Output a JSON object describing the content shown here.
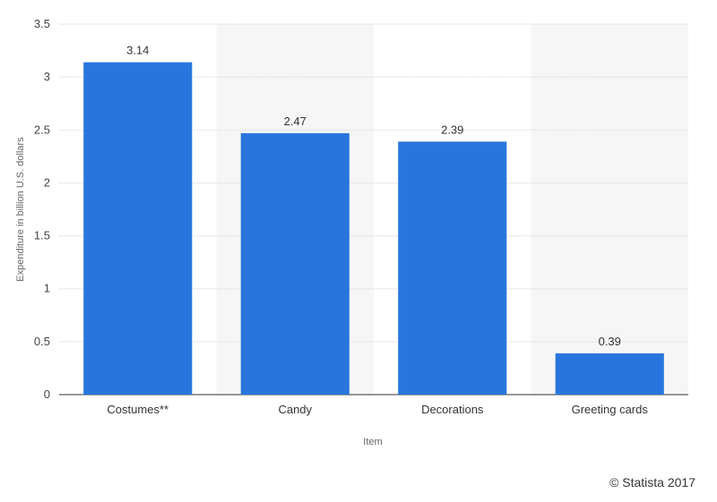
{
  "chart_data": {
    "type": "bar",
    "categories": [
      "Costumes**",
      "Candy",
      "Decorations",
      "Greeting cards"
    ],
    "values": [
      3.14,
      2.47,
      2.39,
      0.39
    ],
    "value_labels": [
      "3.14",
      "2.47",
      "2.39",
      "0.39"
    ],
    "title": "",
    "xlabel": "Item",
    "ylabel": "Expenditure in billion U.S. dollars",
    "ylim": [
      0,
      3.5
    ],
    "yticks": [
      0,
      0.5,
      1,
      1.5,
      2,
      2.5,
      3,
      3.5
    ],
    "ytick_labels": [
      "0",
      "0.5",
      "1",
      "1.5",
      "2",
      "2.5",
      "3",
      "3.5"
    ],
    "grid": true,
    "bar_color": "#2876dd",
    "band_color": "#f6f6f6",
    "grid_color": "#dddddd"
  },
  "credit": "© Statista 2017"
}
